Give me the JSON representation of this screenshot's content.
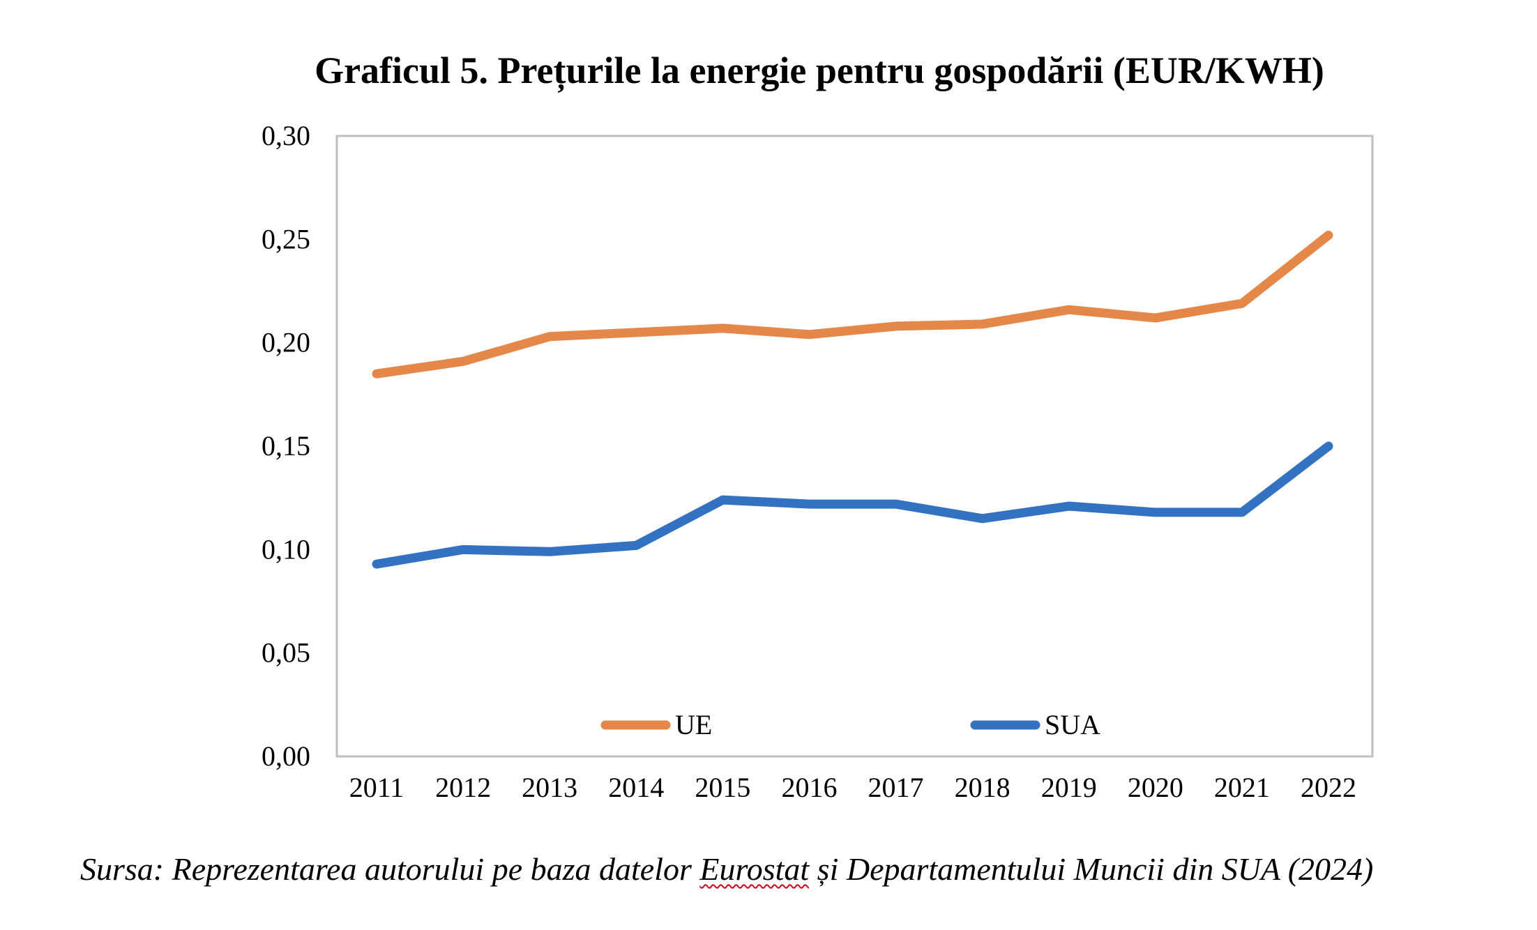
{
  "chart_data": {
    "type": "line",
    "title": "Graficul 5. Prețurile la energie pentru gospodării (EUR/KWH)",
    "xlabel": "",
    "ylabel": "",
    "categories": [
      "2011",
      "2012",
      "2013",
      "2014",
      "2015",
      "2016",
      "2017",
      "2018",
      "2019",
      "2020",
      "2021",
      "2022"
    ],
    "ylim": [
      0,
      0.3
    ],
    "yticks": [
      "0,00",
      "0,05",
      "0,10",
      "0,15",
      "0,20",
      "0,25",
      "0,30"
    ],
    "grid": false,
    "legend_position": "bottom-inside",
    "series": [
      {
        "name": "UE",
        "color": "#e6874a",
        "values": [
          0.185,
          0.191,
          0.203,
          0.205,
          0.207,
          0.204,
          0.208,
          0.209,
          0.216,
          0.212,
          0.219,
          0.252
        ]
      },
      {
        "name": "SUA",
        "color": "#3371c1",
        "values": [
          0.093,
          0.1,
          0.099,
          0.102,
          0.124,
          0.122,
          0.122,
          0.115,
          0.121,
          0.118,
          0.118,
          0.15
        ]
      }
    ]
  },
  "source": {
    "before": "Sursa: Reprezentarea autorului pe baza datelor ",
    "highlight": "Eurostat",
    "after": " și Departamentului Muncii din SUA (2024)"
  }
}
